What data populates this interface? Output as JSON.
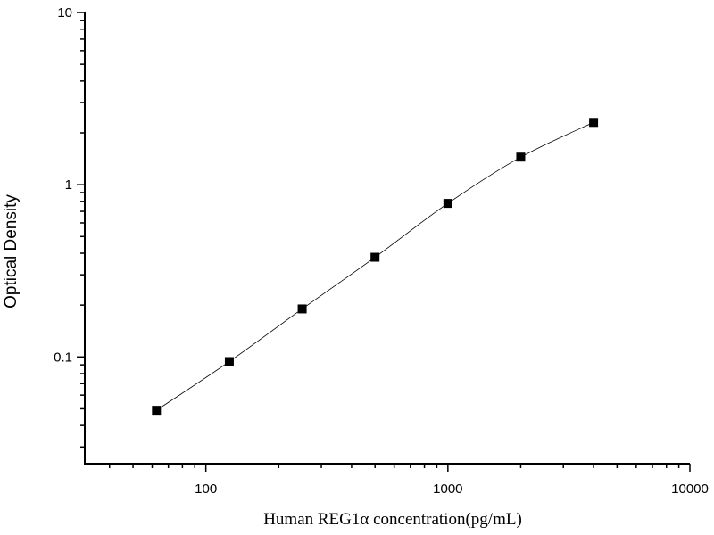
{
  "chart_data": {
    "type": "scatter",
    "title": "",
    "xlabel": "Human REG1α   concentration(pg/mL)",
    "ylabel": "Optical Density",
    "x_scale": "log",
    "y_scale": "log",
    "xlim": [
      31.6,
      10000
    ],
    "ylim": [
      0.024,
      10
    ],
    "x_ticks": [
      100,
      1000,
      10000
    ],
    "x_tick_labels": [
      "100",
      "1000",
      "10000"
    ],
    "y_ticks": [
      0.1,
      1,
      10
    ],
    "y_tick_labels": [
      "0.1",
      "1",
      "10"
    ],
    "grid": false,
    "legend": "none",
    "marker": "square",
    "fit_curve": true,
    "color": "#000000",
    "x": [
      62.5,
      125,
      250,
      500,
      1000,
      2000,
      4000
    ],
    "y": [
      0.049,
      0.094,
      0.19,
      0.379,
      0.779,
      1.446,
      2.3
    ]
  }
}
